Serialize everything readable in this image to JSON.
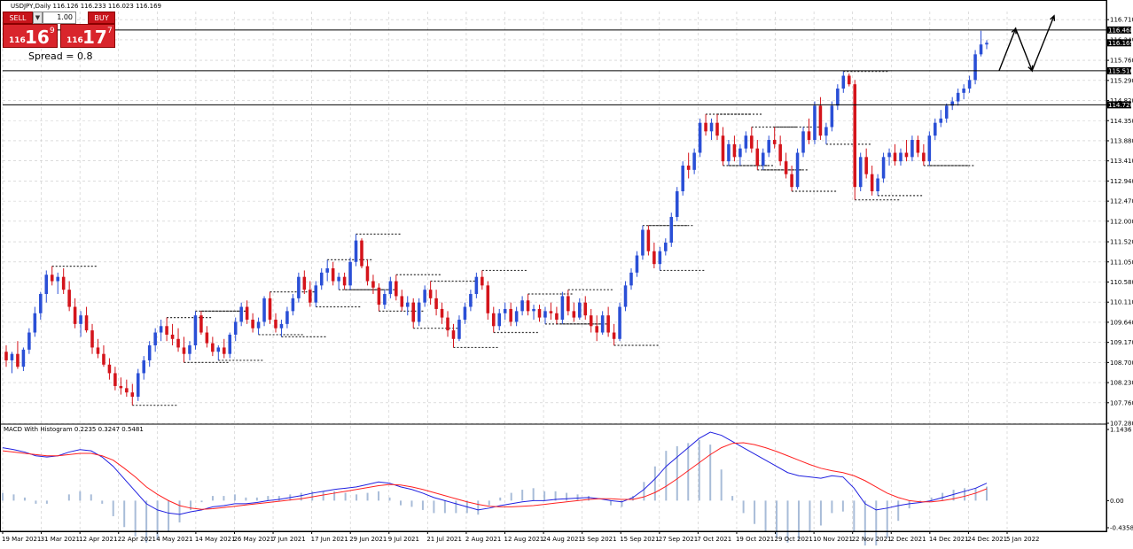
{
  "chart_header": {
    "symbol": "USDJPY,Daily",
    "ohlc": "116.126 116.233 116.023 116.169"
  },
  "trade_panel": {
    "sell_label": "SELL",
    "buy_label": "BUY",
    "lot": "1.00",
    "sell_small": "116",
    "sell_big": "16",
    "sell_sup": "9",
    "buy_small": "116",
    "buy_big": "17",
    "buy_sup": "7"
  },
  "spread_text": "Spread = 0.8",
  "macd_title": "MACD With Histogram 0.2235 0.3247 0.5481",
  "price_axis_ticks": [
    "116.710",
    "116.240",
    "115.760",
    "115.290",
    "114.820",
    "114.350",
    "113.880",
    "113.410",
    "112.940",
    "112.470",
    "112.000",
    "111.520",
    "111.050",
    "110.580",
    "110.110",
    "109.640",
    "109.170",
    "108.700",
    "108.230",
    "107.760",
    "107.280"
  ],
  "level_tags": [
    "116.468",
    "116.169",
    "115.516",
    "114.720"
  ],
  "macd_ticks": [
    "1.1436",
    "0.00",
    "-0.4358"
  ],
  "date_ticks": [
    "19 Mar 2021",
    "31 Mar 2021",
    "12 Apr 2021",
    "22 Apr 2021",
    "4 May 2021",
    "14 May 2021",
    "26 May 2021",
    "7 Jun 2021",
    "17 Jun 2021",
    "29 Jun 2021",
    "9 Jul 2021",
    "21 Jul 2021",
    "2 Aug 2021",
    "12 Aug 2021",
    "24 Aug 2021",
    "3 Sep 2021",
    "15 Sep 2021",
    "27 Sep 2021",
    "7 Oct 2021",
    "19 Oct 2021",
    "29 Oct 2021",
    "10 Nov 2021",
    "22 Nov 2021",
    "2 Dec 2021",
    "14 Dec 2021",
    "24 Dec 2021",
    "5 Jan 2022"
  ],
  "colors": {
    "bull": "#2a4fd6",
    "bear": "#d4141b",
    "grid": "#c8c8c8",
    "macd": "#2020e0",
    "signal": "#ff2020",
    "hist": "#a8bcd8"
  },
  "chart_data": {
    "type": "candlestick",
    "ylim": [
      107.28,
      116.9
    ],
    "ohlc": [
      [
        108.95,
        109.1,
        108.6,
        108.75
      ],
      [
        108.75,
        108.95,
        108.45,
        108.9
      ],
      [
        108.9,
        109.2,
        108.55,
        108.6
      ],
      [
        108.6,
        109.05,
        108.5,
        109.0
      ],
      [
        109.0,
        109.5,
        108.9,
        109.4
      ],
      [
        109.4,
        110.0,
        109.3,
        109.85
      ],
      [
        109.85,
        110.35,
        109.7,
        110.3
      ],
      [
        110.3,
        110.85,
        110.1,
        110.75
      ],
      [
        110.75,
        110.95,
        110.5,
        110.6
      ],
      [
        110.6,
        110.8,
        110.3,
        110.7
      ],
      [
        110.7,
        110.9,
        110.3,
        110.4
      ],
      [
        110.4,
        110.6,
        109.9,
        110.0
      ],
      [
        110.0,
        110.2,
        109.5,
        109.6
      ],
      [
        109.6,
        109.9,
        109.3,
        109.8
      ],
      [
        109.8,
        110.0,
        109.4,
        109.45
      ],
      [
        109.45,
        109.6,
        108.9,
        109.05
      ],
      [
        109.05,
        109.25,
        108.8,
        108.9
      ],
      [
        108.9,
        109.1,
        108.6,
        108.65
      ],
      [
        108.65,
        108.8,
        108.3,
        108.45
      ],
      [
        108.45,
        108.6,
        108.05,
        108.15
      ],
      [
        108.15,
        108.35,
        107.95,
        108.1
      ],
      [
        108.1,
        108.3,
        107.9,
        108.0
      ],
      [
        108.0,
        108.2,
        107.7,
        107.9
      ],
      [
        107.9,
        108.55,
        107.8,
        108.45
      ],
      [
        108.45,
        108.85,
        108.3,
        108.75
      ],
      [
        108.75,
        109.2,
        108.6,
        109.1
      ],
      [
        109.1,
        109.5,
        108.95,
        109.4
      ],
      [
        109.4,
        109.7,
        109.2,
        109.55
      ],
      [
        109.55,
        109.75,
        109.2,
        109.35
      ],
      [
        109.35,
        109.6,
        109.1,
        109.25
      ],
      [
        109.25,
        109.5,
        108.95,
        109.05
      ],
      [
        109.05,
        109.3,
        108.7,
        108.9
      ],
      [
        108.9,
        109.2,
        108.75,
        109.1
      ],
      [
        109.1,
        109.9,
        109.0,
        109.8
      ],
      [
        109.8,
        109.9,
        109.35,
        109.4
      ],
      [
        109.4,
        109.55,
        109.05,
        109.15
      ],
      [
        109.15,
        109.3,
        108.85,
        108.95
      ],
      [
        108.95,
        109.1,
        108.75,
        109.05
      ],
      [
        109.05,
        109.25,
        108.8,
        108.9
      ],
      [
        108.9,
        109.4,
        108.8,
        109.35
      ],
      [
        109.35,
        109.75,
        109.2,
        109.65
      ],
      [
        109.65,
        110.1,
        109.55,
        110.0
      ],
      [
        110.0,
        110.15,
        109.6,
        109.7
      ],
      [
        109.7,
        109.85,
        109.4,
        109.5
      ],
      [
        109.5,
        109.75,
        109.35,
        109.65
      ],
      [
        109.65,
        110.25,
        109.55,
        110.2
      ],
      [
        110.2,
        110.35,
        109.6,
        109.7
      ],
      [
        109.7,
        109.85,
        109.4,
        109.5
      ],
      [
        109.5,
        109.7,
        109.3,
        109.6
      ],
      [
        109.6,
        110.0,
        109.5,
        109.9
      ],
      [
        109.9,
        110.3,
        109.8,
        110.2
      ],
      [
        110.2,
        110.8,
        110.1,
        110.7
      ],
      [
        110.7,
        110.85,
        110.3,
        110.4
      ],
      [
        110.4,
        110.6,
        110.0,
        110.1
      ],
      [
        110.1,
        110.6,
        110.0,
        110.5
      ],
      [
        110.5,
        110.9,
        110.4,
        110.8
      ],
      [
        110.8,
        111.1,
        110.6,
        110.9
      ],
      [
        110.9,
        111.05,
        110.5,
        110.6
      ],
      [
        110.6,
        110.8,
        110.4,
        110.7
      ],
      [
        110.7,
        110.8,
        110.4,
        110.5
      ],
      [
        110.5,
        111.15,
        110.4,
        111.05
      ],
      [
        111.05,
        111.7,
        110.95,
        111.55
      ],
      [
        111.55,
        111.6,
        110.9,
        110.95
      ],
      [
        110.95,
        111.1,
        110.5,
        110.6
      ],
      [
        110.6,
        110.75,
        110.3,
        110.45
      ],
      [
        110.45,
        110.55,
        109.9,
        110.05
      ],
      [
        110.05,
        110.4,
        109.95,
        110.3
      ],
      [
        110.3,
        110.7,
        110.2,
        110.6
      ],
      [
        110.6,
        110.75,
        110.15,
        110.25
      ],
      [
        110.25,
        110.4,
        109.9,
        110.0
      ],
      [
        110.0,
        110.25,
        109.8,
        110.1
      ],
      [
        110.1,
        110.2,
        109.5,
        109.65
      ],
      [
        109.65,
        110.2,
        109.55,
        110.1
      ],
      [
        110.1,
        110.5,
        110.0,
        110.4
      ],
      [
        110.4,
        110.6,
        110.05,
        110.2
      ],
      [
        110.2,
        110.4,
        109.8,
        109.95
      ],
      [
        109.95,
        110.1,
        109.6,
        109.75
      ],
      [
        109.75,
        109.9,
        109.3,
        109.45
      ],
      [
        109.45,
        109.6,
        109.05,
        109.25
      ],
      [
        109.25,
        109.8,
        109.2,
        109.7
      ],
      [
        109.7,
        110.1,
        109.6,
        110.0
      ],
      [
        110.0,
        110.4,
        109.9,
        110.3
      ],
      [
        110.3,
        110.8,
        110.2,
        110.7
      ],
      [
        110.7,
        110.85,
        110.4,
        110.5
      ],
      [
        110.5,
        110.6,
        109.7,
        109.85
      ],
      [
        109.85,
        110.0,
        109.4,
        109.55
      ],
      [
        109.55,
        109.95,
        109.45,
        109.85
      ],
      [
        109.85,
        110.1,
        109.7,
        109.95
      ],
      [
        109.95,
        110.1,
        109.55,
        109.65
      ],
      [
        109.65,
        110.0,
        109.55,
        109.9
      ],
      [
        109.9,
        110.25,
        109.8,
        110.15
      ],
      [
        110.15,
        110.3,
        109.8,
        109.9
      ],
      [
        109.9,
        110.05,
        109.7,
        109.95
      ],
      [
        109.95,
        110.05,
        109.65,
        109.75
      ],
      [
        109.75,
        110.0,
        109.6,
        109.9
      ],
      [
        109.9,
        110.1,
        109.7,
        109.85
      ],
      [
        109.85,
        110.0,
        109.6,
        109.7
      ],
      [
        109.7,
        110.35,
        109.6,
        110.25
      ],
      [
        110.25,
        110.4,
        109.8,
        109.9
      ],
      [
        109.9,
        110.1,
        109.65,
        109.75
      ],
      [
        109.75,
        110.2,
        109.7,
        110.1
      ],
      [
        110.1,
        110.25,
        109.7,
        109.8
      ],
      [
        109.8,
        109.95,
        109.4,
        109.55
      ],
      [
        109.55,
        109.8,
        109.2,
        109.4
      ],
      [
        109.4,
        109.9,
        109.35,
        109.8
      ],
      [
        109.8,
        110.0,
        109.3,
        109.4
      ],
      [
        109.4,
        109.6,
        109.1,
        109.25
      ],
      [
        109.25,
        110.1,
        109.2,
        110.0
      ],
      [
        110.0,
        110.6,
        109.9,
        110.5
      ],
      [
        110.5,
        110.9,
        110.4,
        110.8
      ],
      [
        110.8,
        111.3,
        110.7,
        111.2
      ],
      [
        111.2,
        111.9,
        111.1,
        111.8
      ],
      [
        111.8,
        111.9,
        111.2,
        111.3
      ],
      [
        111.3,
        111.5,
        110.9,
        111.0
      ],
      [
        111.0,
        111.4,
        110.85,
        111.3
      ],
      [
        111.3,
        111.6,
        111.2,
        111.5
      ],
      [
        111.5,
        112.2,
        111.4,
        112.1
      ],
      [
        112.1,
        112.8,
        112.0,
        112.7
      ],
      [
        112.7,
        113.4,
        112.6,
        113.3
      ],
      [
        113.3,
        113.6,
        113.0,
        113.2
      ],
      [
        113.2,
        113.7,
        113.1,
        113.6
      ],
      [
        113.6,
        114.4,
        113.5,
        114.3
      ],
      [
        114.3,
        114.5,
        114.0,
        114.1
      ],
      [
        114.1,
        114.4,
        113.9,
        114.3
      ],
      [
        114.3,
        114.5,
        113.9,
        114.0
      ],
      [
        114.0,
        114.2,
        113.3,
        113.4
      ],
      [
        113.4,
        113.9,
        113.3,
        113.8
      ],
      [
        113.8,
        114.0,
        113.4,
        113.5
      ],
      [
        113.5,
        113.8,
        113.3,
        113.7
      ],
      [
        113.7,
        114.1,
        113.6,
        114.0
      ],
      [
        114.0,
        114.2,
        113.6,
        113.7
      ],
      [
        113.7,
        113.9,
        113.2,
        113.3
      ],
      [
        113.3,
        113.7,
        113.2,
        113.6
      ],
      [
        113.6,
        114.0,
        113.5,
        113.9
      ],
      [
        113.9,
        114.2,
        113.7,
        113.8
      ],
      [
        113.8,
        114.0,
        113.3,
        113.4
      ],
      [
        113.4,
        113.6,
        113.0,
        113.1
      ],
      [
        113.1,
        113.3,
        112.7,
        112.8
      ],
      [
        112.8,
        113.7,
        112.75,
        113.6
      ],
      [
        113.6,
        114.2,
        113.5,
        114.1
      ],
      [
        114.1,
        114.4,
        113.8,
        113.9
      ],
      [
        113.9,
        114.8,
        113.8,
        114.7
      ],
      [
        114.7,
        114.9,
        113.9,
        114.0
      ],
      [
        114.0,
        114.3,
        113.8,
        114.2
      ],
      [
        114.2,
        114.8,
        114.1,
        114.7
      ],
      [
        114.7,
        115.2,
        114.6,
        115.1
      ],
      [
        115.1,
        115.5,
        115.0,
        115.4
      ],
      [
        115.4,
        115.45,
        115.15,
        115.2
      ],
      [
        115.2,
        115.3,
        112.5,
        112.8
      ],
      [
        112.8,
        113.6,
        112.7,
        113.5
      ],
      [
        113.5,
        113.7,
        113.0,
        113.1
      ],
      [
        113.1,
        113.3,
        112.6,
        112.7
      ],
      [
        112.7,
        113.1,
        112.6,
        113.0
      ],
      [
        113.0,
        113.6,
        112.9,
        113.5
      ],
      [
        113.5,
        113.7,
        113.3,
        113.6
      ],
      [
        113.6,
        113.8,
        113.3,
        113.4
      ],
      [
        113.4,
        113.7,
        113.3,
        113.6
      ],
      [
        113.6,
        113.9,
        113.4,
        113.5
      ],
      [
        113.5,
        114.0,
        113.4,
        113.9
      ],
      [
        113.9,
        114.0,
        113.5,
        113.6
      ],
      [
        113.6,
        113.8,
        113.3,
        113.4
      ],
      [
        113.4,
        114.1,
        113.3,
        114.0
      ],
      [
        114.0,
        114.4,
        113.9,
        114.3
      ],
      [
        114.3,
        114.6,
        114.2,
        114.4
      ],
      [
        114.4,
        114.75,
        114.3,
        114.7
      ],
      [
        114.7,
        114.9,
        114.6,
        114.8
      ],
      [
        114.8,
        115.1,
        114.7,
        115.0
      ],
      [
        115.0,
        115.2,
        114.85,
        115.1
      ],
      [
        115.1,
        115.4,
        115.0,
        115.3
      ],
      [
        115.3,
        116.0,
        115.2,
        115.9
      ],
      [
        115.9,
        116.45,
        115.85,
        116.13
      ],
      [
        116.13,
        116.23,
        116.02,
        116.169
      ]
    ],
    "resistance_lines": [
      116.468,
      115.516,
      114.72
    ],
    "forecast_path": [
      [
        115.52,
        0
      ],
      [
        116.5,
        3
      ],
      [
        115.52,
        6
      ],
      [
        116.8,
        10
      ]
    ],
    "macd_ylim": [
      -0.4358,
      1.1436
    ],
    "macd_main": [
      0.85,
      0.82,
      0.78,
      0.72,
      0.7,
      0.72,
      0.78,
      0.82,
      0.8,
      0.7,
      0.55,
      0.35,
      0.15,
      -0.05,
      -0.15,
      -0.2,
      -0.22,
      -0.18,
      -0.15,
      -0.1,
      -0.08,
      -0.05,
      -0.05,
      -0.03,
      0.0,
      0.02,
      0.05,
      0.08,
      0.12,
      0.15,
      0.18,
      0.2,
      0.22,
      0.26,
      0.3,
      0.28,
      0.22,
      0.18,
      0.12,
      0.05,
      0.0,
      -0.05,
      -0.1,
      -0.15,
      -0.12,
      -0.08,
      -0.05,
      -0.02,
      0.0,
      0.0,
      0.02,
      0.03,
      0.04,
      0.05,
      0.03,
      0.0,
      -0.02,
      0.05,
      0.18,
      0.35,
      0.55,
      0.7,
      0.85,
      1.0,
      1.1,
      1.05,
      0.95,
      0.85,
      0.75,
      0.65,
      0.55,
      0.45,
      0.4,
      0.38,
      0.36,
      0.4,
      0.38,
      0.2,
      -0.05,
      -0.15,
      -0.12,
      -0.08,
      -0.05,
      -0.03,
      0.0,
      0.05,
      0.1,
      0.15,
      0.2,
      0.28
    ],
    "macd_signal": [
      0.8,
      0.78,
      0.76,
      0.74,
      0.72,
      0.72,
      0.74,
      0.76,
      0.76,
      0.72,
      0.65,
      0.52,
      0.38,
      0.22,
      0.1,
      0.0,
      -0.08,
      -0.12,
      -0.14,
      -0.13,
      -0.11,
      -0.09,
      -0.07,
      -0.05,
      -0.03,
      -0.01,
      0.01,
      0.03,
      0.06,
      0.09,
      0.12,
      0.15,
      0.18,
      0.21,
      0.24,
      0.26,
      0.25,
      0.22,
      0.18,
      0.13,
      0.08,
      0.03,
      -0.02,
      -0.06,
      -0.09,
      -0.1,
      -0.1,
      -0.09,
      -0.08,
      -0.06,
      -0.04,
      -0.02,
      0.0,
      0.02,
      0.03,
      0.03,
      0.02,
      0.02,
      0.06,
      0.13,
      0.23,
      0.35,
      0.48,
      0.61,
      0.74,
      0.85,
      0.92,
      0.93,
      0.9,
      0.85,
      0.79,
      0.72,
      0.65,
      0.58,
      0.52,
      0.48,
      0.45,
      0.4,
      0.32,
      0.22,
      0.12,
      0.05,
      0.0,
      -0.02,
      -0.02,
      0.0,
      0.03,
      0.07,
      0.12,
      0.19
    ]
  }
}
